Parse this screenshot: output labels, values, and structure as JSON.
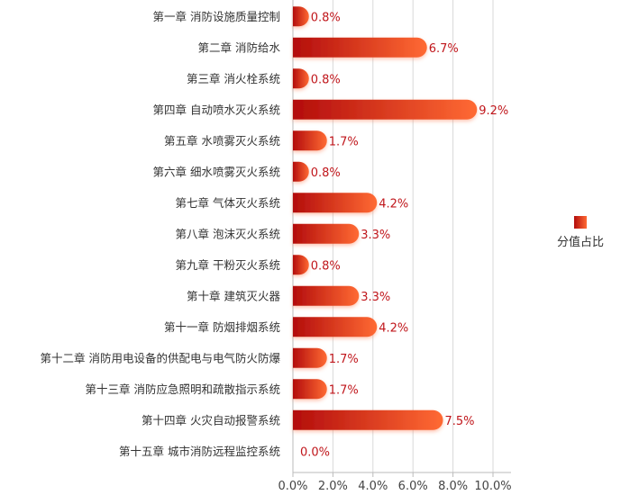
{
  "chart_data": {
    "type": "bar",
    "orientation": "horizontal",
    "categories": [
      "第一章 消防设施质量控制",
      "第二章 消防给水",
      "第三章 消火栓系统",
      "第四章 自动喷水灭火系统",
      "第五章 水喷雾灭火系统",
      "第六章 细水喷雾灭火系统",
      "第七章 气体灭火系统",
      "第八章 泡沫灭火系统",
      "第九章 干粉灭火系统",
      "第十章 建筑灭火器",
      "第十一章 防烟排烟系统",
      "第十二章 消防用电设备的供配电与电气防火防爆",
      "第十三章 消防应急照明和疏散指示系统",
      "第十四章 火灾自动报警系统",
      "第十五章 城市消防远程监控系统"
    ],
    "series": [
      {
        "name": "分值占比",
        "values": [
          0.8,
          6.7,
          0.8,
          9.2,
          1.7,
          0.8,
          4.2,
          3.3,
          0.8,
          3.3,
          4.2,
          1.7,
          1.7,
          7.5,
          0.0
        ]
      }
    ],
    "data_labels": [
      "0.8%",
      "6.7%",
      "0.8%",
      "9.2%",
      "1.7%",
      "0.8%",
      "4.2%",
      "3.3%",
      "0.8%",
      "3.3%",
      "4.2%",
      "1.7%",
      "1.7%",
      "7.5%",
      "0.0%"
    ],
    "xlim": [
      0,
      10
    ],
    "x_ticks": [
      "0.0%",
      "2.0%",
      "4.0%",
      "6.0%",
      "8.0%",
      "10.0%"
    ],
    "grid": true,
    "legend": "right",
    "colors": {
      "gradient_start": "#b30c0c",
      "gradient_end": "#ff6a33",
      "label": "#c0161b"
    }
  }
}
